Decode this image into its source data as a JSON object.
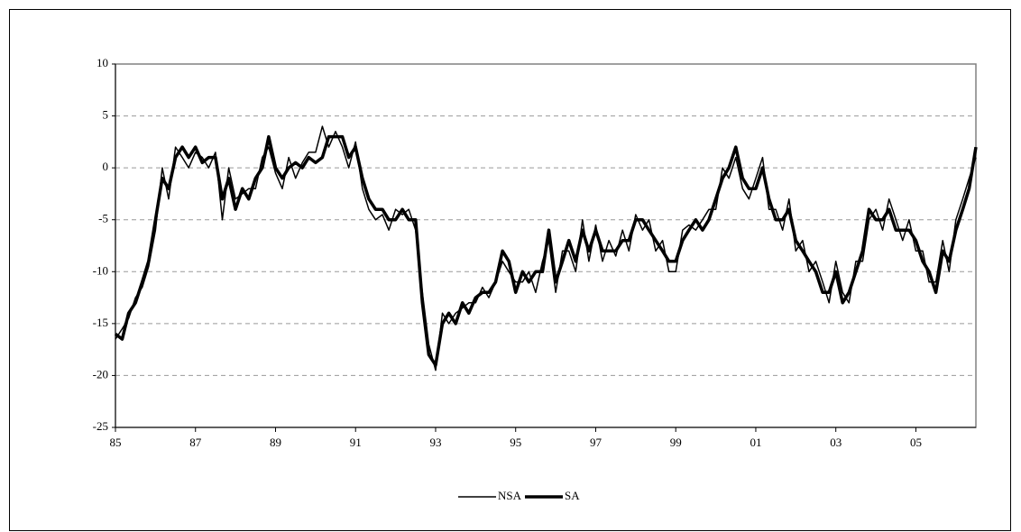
{
  "chart_data": {
    "type": "line",
    "x": [
      1985,
      1985.17,
      1985.33,
      1985.5,
      1985.67,
      1985.83,
      1986,
      1986.17,
      1986.33,
      1986.5,
      1986.67,
      1986.83,
      1987,
      1987.17,
      1987.33,
      1987.5,
      1987.67,
      1987.83,
      1988,
      1988.17,
      1988.33,
      1988.5,
      1988.67,
      1988.83,
      1989,
      1989.17,
      1989.33,
      1989.5,
      1989.67,
      1989.83,
      1990,
      1990.17,
      1990.33,
      1990.5,
      1990.67,
      1990.83,
      1991,
      1991.17,
      1991.33,
      1991.5,
      1991.67,
      1991.83,
      1992,
      1992.17,
      1992.33,
      1992.5,
      1992.67,
      1992.83,
      1993,
      1993.17,
      1993.33,
      1993.5,
      1993.67,
      1993.83,
      1994,
      1994.17,
      1994.33,
      1994.5,
      1994.67,
      1994.83,
      1995,
      1995.17,
      1995.33,
      1995.5,
      1995.67,
      1995.83,
      1996,
      1996.17,
      1996.33,
      1996.5,
      1996.67,
      1996.83,
      1997,
      1997.17,
      1997.33,
      1997.5,
      1997.67,
      1997.83,
      1998,
      1998.17,
      1998.33,
      1998.5,
      1998.67,
      1998.83,
      1999,
      1999.17,
      1999.33,
      1999.5,
      1999.67,
      1999.83,
      2000,
      2000.17,
      2000.33,
      2000.5,
      2000.67,
      2000.83,
      2001,
      2001.17,
      2001.33,
      2001.5,
      2001.67,
      2001.83,
      2002,
      2002.17,
      2002.33,
      2002.5,
      2002.67,
      2002.83,
      2003,
      2003.17,
      2003.33,
      2003.5,
      2003.67,
      2003.83,
      2004,
      2004.17,
      2004.33,
      2004.5,
      2004.67,
      2004.83,
      2005,
      2005.17,
      2005.33,
      2005.5,
      2005.67,
      2005.83,
      2006,
      2006.17,
      2006.33,
      2006.5
    ],
    "series": [
      {
        "name": "NSA",
        "color": "#000000",
        "width": 1.5,
        "values": [
          -16.5,
          -15.5,
          -14.5,
          -12.5,
          -11.5,
          -9.5,
          -6,
          0,
          -3,
          2,
          1,
          0,
          1.5,
          1,
          0,
          1.5,
          -5,
          0,
          -3,
          -2.5,
          -2,
          -2,
          1,
          2,
          -0.5,
          -2,
          1,
          -1,
          0.5,
          1.5,
          1.5,
          4,
          2,
          3.5,
          2,
          0,
          2.5,
          -2,
          -4,
          -5,
          -4.5,
          -6,
          -4,
          -4.5,
          -4,
          -6,
          -12,
          -17,
          -19.5,
          -14,
          -15,
          -14,
          -13.5,
          -13,
          -13,
          -11.5,
          -12.5,
          -11,
          -9,
          -10,
          -11,
          -11,
          -10,
          -12,
          -9,
          -7,
          -12,
          -8,
          -8,
          -10,
          -5,
          -9,
          -5.5,
          -9,
          -7,
          -8.5,
          -6,
          -8,
          -4.5,
          -6,
          -5,
          -8,
          -7,
          -10,
          -10,
          -6,
          -5.5,
          -6,
          -5,
          -4,
          -4,
          0,
          -1,
          1,
          -2,
          -3,
          -1,
          1,
          -4,
          -4,
          -6,
          -3,
          -8,
          -7,
          -10,
          -9,
          -11,
          -13,
          -9,
          -12,
          -13,
          -9,
          -9,
          -5,
          -4,
          -6,
          -3,
          -5,
          -7,
          -5,
          -8,
          -8,
          -11,
          -11,
          -7,
          -10,
          -5,
          -3,
          -1,
          1
        ]
      },
      {
        "name": "SA",
        "color": "#000000",
        "width": 3.5,
        "values": [
          -16,
          -16.5,
          -14,
          -13,
          -11,
          -9,
          -5,
          -1,
          -2,
          1,
          2,
          1,
          2,
          0.5,
          1,
          1,
          -3,
          -1,
          -4,
          -2,
          -3,
          -1,
          0,
          3,
          0,
          -1,
          0,
          0.5,
          0,
          1,
          0.5,
          1,
          3,
          3,
          3,
          1,
          2,
          -1,
          -3,
          -4,
          -4,
          -5,
          -5,
          -4,
          -5,
          -5,
          -13,
          -18,
          -19,
          -15,
          -14,
          -15,
          -13,
          -14,
          -12.5,
          -12,
          -12,
          -11,
          -8,
          -9,
          -12,
          -10,
          -11,
          -10,
          -10,
          -6,
          -11,
          -9,
          -7,
          -9,
          -6,
          -8,
          -6,
          -8,
          -8,
          -8,
          -7,
          -7,
          -5,
          -5,
          -6,
          -7,
          -8,
          -9,
          -9,
          -7,
          -6,
          -5,
          -6,
          -5,
          -3,
          -1,
          0,
          2,
          -1,
          -2,
          -2,
          0,
          -3,
          -5,
          -5,
          -4,
          -7,
          -8,
          -9,
          -10,
          -12,
          -12,
          -10,
          -13,
          -12,
          -10,
          -8,
          -4,
          -5,
          -5,
          -4,
          -6,
          -6,
          -6,
          -7,
          -9,
          -10,
          -12,
          -8,
          -9,
          -6,
          -4,
          -2,
          2
        ]
      }
    ],
    "xlim": [
      1985,
      2006.5
    ],
    "xticks": [
      {
        "value": 1985,
        "label": "85"
      },
      {
        "value": 1987,
        "label": "87"
      },
      {
        "value": 1989,
        "label": "89"
      },
      {
        "value": 1991,
        "label": "91"
      },
      {
        "value": 1993,
        "label": "93"
      },
      {
        "value": 1995,
        "label": "95"
      },
      {
        "value": 1997,
        "label": "97"
      },
      {
        "value": 1999,
        "label": "99"
      },
      {
        "value": 2001,
        "label": "01"
      },
      {
        "value": 2003,
        "label": "03"
      },
      {
        "value": 2005,
        "label": "05"
      }
    ],
    "ylim": [
      -25,
      10
    ],
    "yticks": [
      -25,
      -20,
      -15,
      -10,
      -5,
      0,
      5,
      10
    ],
    "grid": true,
    "legend": "bottom"
  }
}
